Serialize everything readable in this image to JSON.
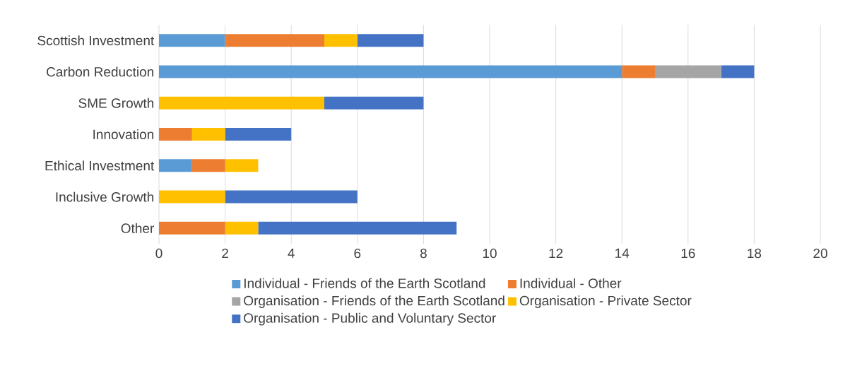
{
  "chart_data": {
    "type": "bar",
    "orientation": "horizontal",
    "stacked": true,
    "categories": [
      "Scottish Investment",
      "Carbon Reduction",
      "SME Growth",
      "Innovation",
      "Ethical Investment",
      "Inclusive Growth",
      "Other"
    ],
    "series": [
      {
        "name": "Individual - Friends of the Earth Scotland",
        "color": "#5b9bd5",
        "values": [
          2,
          14,
          0,
          0,
          1,
          0,
          0
        ]
      },
      {
        "name": "Individual - Other",
        "color": "#ed7d31",
        "values": [
          3,
          1,
          0,
          1,
          1,
          0,
          2
        ]
      },
      {
        "name": "Organisation - Friends of the Earth Scotland",
        "color": "#a5a5a5",
        "values": [
          0,
          2,
          0,
          0,
          0,
          0,
          0
        ]
      },
      {
        "name": "Organisation - Private Sector",
        "color": "#ffc000",
        "values": [
          1,
          0,
          5,
          1,
          1,
          2,
          1
        ]
      },
      {
        "name": "Organisation - Public and Voluntary Sector",
        "color": "#4472c4",
        "values": [
          2,
          1,
          3,
          2,
          0,
          4,
          6
        ]
      }
    ],
    "xlim": [
      0,
      20
    ],
    "xticks": [
      0,
      2,
      4,
      6,
      8,
      10,
      12,
      14,
      16,
      18,
      20
    ],
    "grid": "x",
    "legend": "bottom"
  }
}
